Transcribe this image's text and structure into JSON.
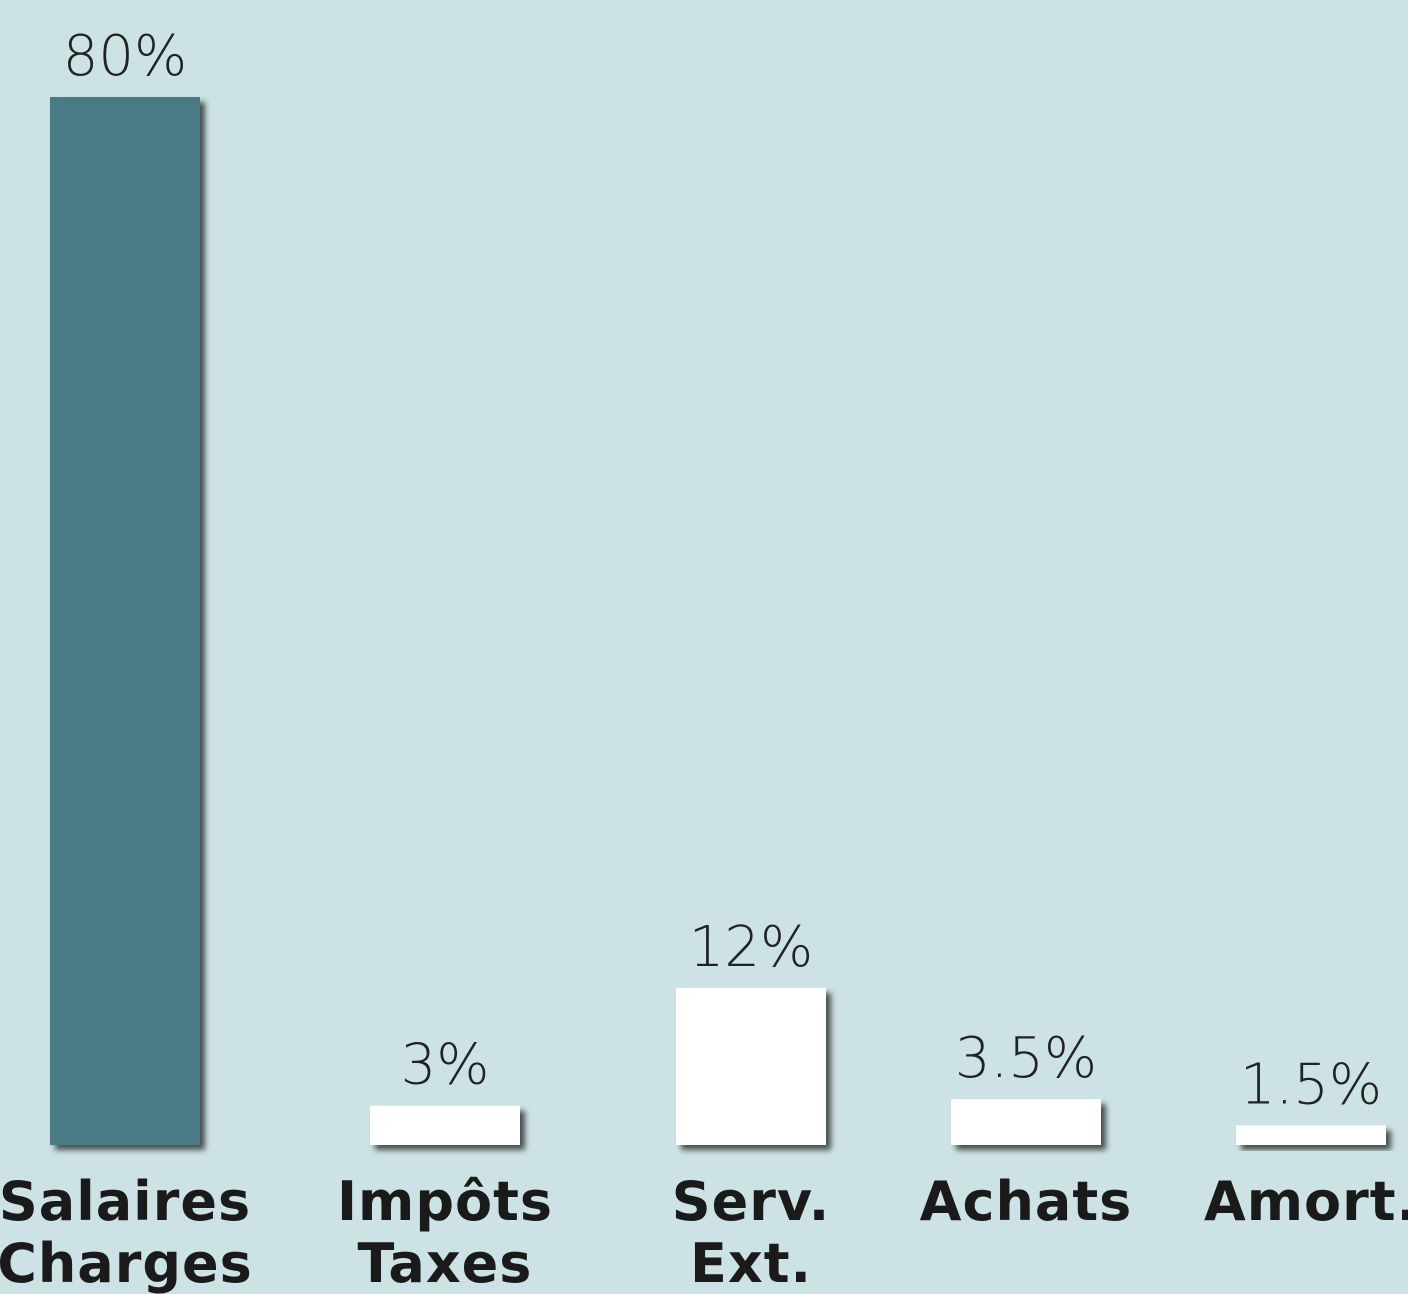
{
  "chart_data": {
    "type": "bar",
    "categories": [
      [
        "Salaires",
        "Charges"
      ],
      [
        "Impôts",
        "Taxes"
      ],
      [
        "Serv.",
        "Ext."
      ],
      [
        "Achats"
      ],
      [
        "Amort."
      ]
    ],
    "values": [
      80,
      3,
      12,
      3.5,
      1.5
    ],
    "value_labels": [
      "80%",
      "3%",
      "12%",
      "3.5%",
      "1.5%"
    ],
    "colors": [
      "#4a7a86",
      "#ffffff",
      "#ffffff",
      "#ffffff",
      "#ffffff"
    ]
  }
}
